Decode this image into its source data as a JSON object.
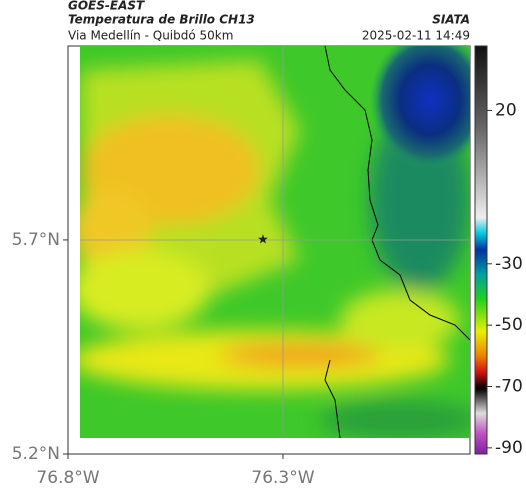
{
  "header": {
    "satellite": "GOES-EAST",
    "product": "Temperatura de Brillo CH13",
    "source": "SIATA",
    "region": "Via Medellín - Quibdó 50km",
    "datetime": "2025-02-11 14:49"
  },
  "map": {
    "xlim": [
      -76.8,
      -75.865
    ],
    "ylim": [
      5.2,
      6.153
    ],
    "xticks": [
      {
        "value": -76.8,
        "label": "76.8°W"
      },
      {
        "value": -76.3,
        "label": "76.3°W"
      }
    ],
    "yticks": [
      {
        "value": 5.2,
        "label": "5.2°N"
      },
      {
        "value": 5.7,
        "label": "5.7°N"
      }
    ]
  },
  "colorbar": {
    "clim": [
      -92,
      41
    ],
    "ticks": [
      20,
      -30,
      -50,
      -70,
      -90
    ]
  }
}
